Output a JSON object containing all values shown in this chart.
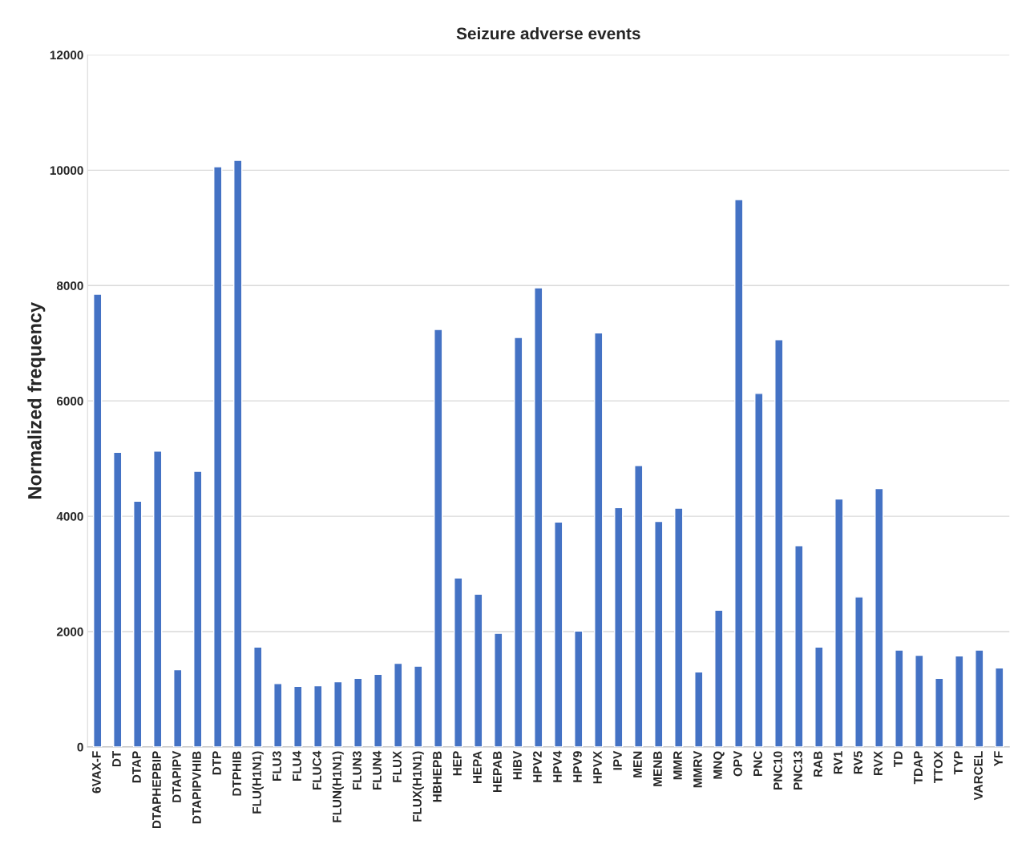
{
  "chart_data": {
    "type": "bar",
    "title": "Seizure adverse events",
    "ylabel": "Normalized frequency",
    "categories": [
      "6VAX-F",
      "DT",
      "DTAP",
      "DTAPHEPBIP",
      "DTAPIPV",
      "DTAPIPVHIB",
      "DTP",
      "DTPHIB",
      "FLU(H1N1)",
      "FLU3",
      "FLU4",
      "FLUC4",
      "FLUN(H1N1)",
      "FLUN3",
      "FLUN4",
      "FLUX",
      "FLUX(H1N1)",
      "HBHEPB",
      "HEP",
      "HEPA",
      "HEPAB",
      "HIBV",
      "HPV2",
      "HPV4",
      "HPV9",
      "HPVX",
      "IPV",
      "MEN",
      "MENB",
      "MMR",
      "MMRV",
      "MNQ",
      "OPV",
      "PNC",
      "PNC10",
      "PNC13",
      "RAB",
      "RV1",
      "RV5",
      "RVX",
      "TD",
      "TDAP",
      "TTOX",
      "TYP",
      "VARCEL",
      "YF"
    ],
    "values": [
      7850,
      5110,
      4260,
      5130,
      1340,
      4780,
      10060,
      10170,
      1730,
      1100,
      1050,
      1060,
      1130,
      1190,
      1260,
      1450,
      1400,
      7240,
      2930,
      2650,
      1970,
      7100,
      7960,
      3900,
      2010,
      7180,
      4150,
      4880,
      3910,
      4140,
      1300,
      2370,
      9490,
      6130,
      7060,
      3490,
      1730,
      4300,
      2600,
      4480,
      1680,
      1590,
      1190,
      1580,
      1680,
      1370
    ],
    "color": "#4472c4",
    "ylim": [
      0,
      12000
    ],
    "yticks": [
      0,
      2000,
      4000,
      6000,
      8000,
      10000,
      12000
    ],
    "grid": "y"
  }
}
